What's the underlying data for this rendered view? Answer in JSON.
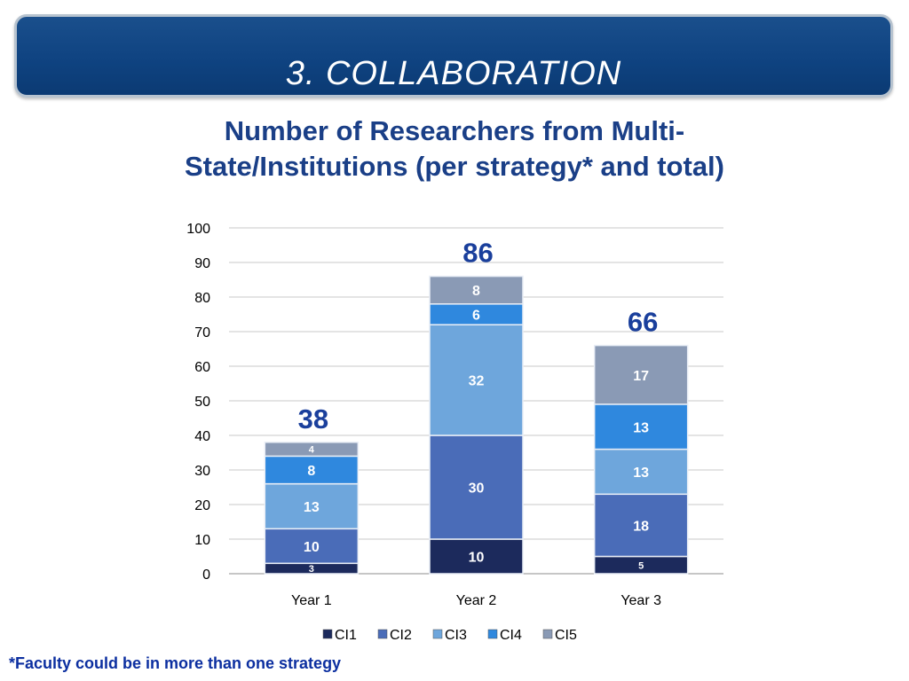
{
  "header": {
    "title": "3. COLLABORATION"
  },
  "chart_data": {
    "type": "bar",
    "stacked": true,
    "title_line1": "Number of Researchers from Multi-",
    "title_line2": "State/Institutions (per strategy* and total)",
    "categories": [
      "Year 1",
      "Year 2",
      "Year 3"
    ],
    "series": [
      {
        "name": "CI1",
        "values": [
          3,
          10,
          5
        ]
      },
      {
        "name": "CI2",
        "values": [
          10,
          30,
          18
        ]
      },
      {
        "name": "CI3",
        "values": [
          13,
          32,
          13
        ]
      },
      {
        "name": "CI4",
        "values": [
          8,
          6,
          13
        ]
      },
      {
        "name": "CI5",
        "values": [
          4,
          8,
          17
        ]
      }
    ],
    "totals": [
      38,
      86,
      66
    ],
    "ylim": [
      0,
      100
    ],
    "yticks": [
      0,
      10,
      20,
      30,
      40,
      50,
      60,
      70,
      80,
      90,
      100
    ],
    "grid": true,
    "legend": "bottom",
    "colors": [
      "#1c2a5c",
      "#4a6cb8",
      "#6ea6dc",
      "#2f88de",
      "#8a9ab5"
    ]
  },
  "footnote": "*Faculty could be in more than one strategy"
}
